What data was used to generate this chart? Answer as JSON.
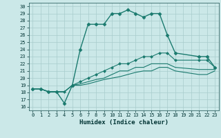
{
  "xlabel": "Humidex (Indice chaleur)",
  "bg_color": "#cbe8e8",
  "grid_color": "#a8cccc",
  "line_color": "#1a7a6e",
  "xlim": [
    -0.5,
    23.5
  ],
  "ylim": [
    15.5,
    30.5
  ],
  "xticks": [
    0,
    1,
    2,
    3,
    4,
    5,
    6,
    7,
    8,
    9,
    10,
    11,
    12,
    13,
    14,
    15,
    16,
    17,
    18,
    19,
    20,
    21,
    22,
    23
  ],
  "yticks": [
    16,
    17,
    18,
    19,
    20,
    21,
    22,
    23,
    24,
    25,
    26,
    27,
    28,
    29,
    30
  ],
  "series": [
    {
      "x": [
        0,
        1,
        2,
        3,
        4,
        5,
        6,
        7,
        8,
        9,
        10,
        11,
        12,
        13,
        14,
        15,
        16,
        17,
        18,
        21,
        22,
        23
      ],
      "y": [
        18.5,
        18.5,
        18.1,
        18.1,
        16.5,
        19.0,
        24.0,
        27.5,
        27.5,
        27.5,
        29.0,
        29.0,
        29.5,
        29.0,
        28.5,
        29.0,
        29.0,
        26.0,
        23.5,
        23.0,
        23.0,
        21.5
      ],
      "marker": "D",
      "markersize": 2.5,
      "linewidth": 1.0
    },
    {
      "x": [
        0,
        1,
        2,
        3,
        4,
        5,
        6,
        7,
        8,
        9,
        10,
        11,
        12,
        13,
        14,
        15,
        16,
        17,
        18,
        21,
        22,
        23
      ],
      "y": [
        18.5,
        18.5,
        18.1,
        18.1,
        18.1,
        19.0,
        19.5,
        20.0,
        20.5,
        21.0,
        21.5,
        22.0,
        22.0,
        22.5,
        23.0,
        23.0,
        23.5,
        23.5,
        22.5,
        22.5,
        22.5,
        21.5
      ],
      "marker": "D",
      "markersize": 2.0,
      "linewidth": 0.8
    },
    {
      "x": [
        0,
        1,
        2,
        3,
        4,
        5,
        6,
        7,
        8,
        9,
        10,
        11,
        12,
        13,
        14,
        15,
        16,
        17,
        18,
        21,
        22,
        23
      ],
      "y": [
        18.5,
        18.5,
        18.1,
        18.1,
        18.1,
        19.0,
        19.2,
        19.5,
        19.8,
        20.0,
        20.5,
        21.0,
        21.0,
        21.5,
        21.5,
        22.0,
        22.0,
        22.0,
        21.5,
        21.2,
        21.2,
        21.2
      ],
      "marker": null,
      "markersize": 1.5,
      "linewidth": 0.8
    },
    {
      "x": [
        0,
        1,
        2,
        3,
        4,
        5,
        6,
        7,
        8,
        9,
        10,
        11,
        12,
        13,
        14,
        15,
        16,
        17,
        18,
        21,
        22,
        23
      ],
      "y": [
        18.5,
        18.5,
        18.1,
        18.1,
        18.1,
        19.0,
        19.0,
        19.2,
        19.5,
        19.8,
        20.0,
        20.2,
        20.5,
        20.8,
        21.0,
        21.0,
        21.5,
        21.5,
        21.0,
        20.5,
        20.5,
        21.0
      ],
      "marker": null,
      "markersize": 1.5,
      "linewidth": 0.8
    }
  ]
}
